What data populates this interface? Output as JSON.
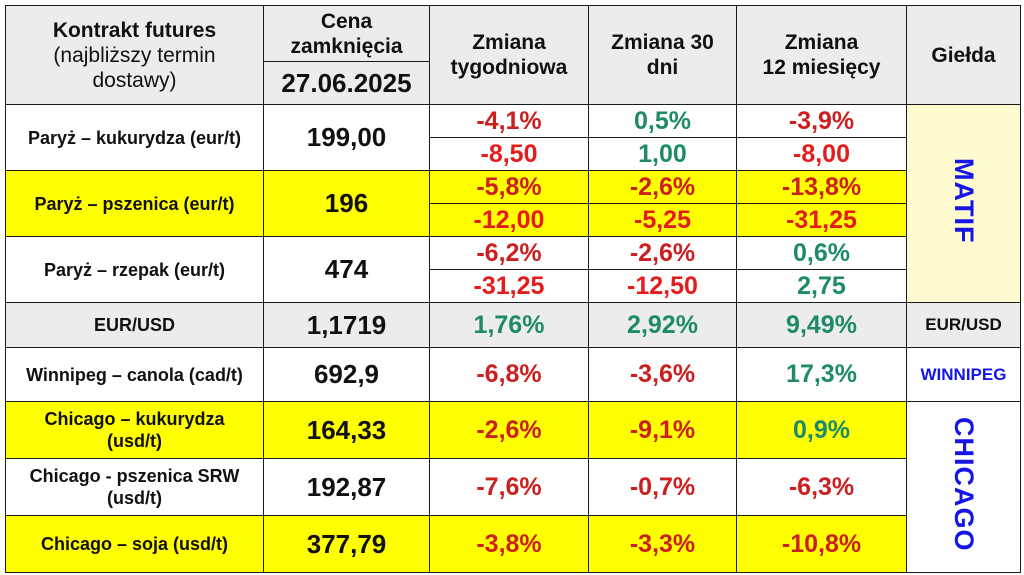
{
  "header": {
    "contract_line1": "Kontrakt futures",
    "contract_line2": "(najbliższy termin",
    "contract_line3": "dostawy)",
    "price_line1": "Cena",
    "price_line2": "zamknięcia",
    "date": "27.06.2025",
    "weekly_line1": "Zmiana",
    "weekly_line2": "tygodniowa",
    "d30_line1": "Zmiana 30",
    "d30_line2": "dni",
    "m12_line1": "Zmiana",
    "m12_line2": "12 miesięcy",
    "exchange": "Giełda"
  },
  "rows": [
    {
      "name": "Paryż – kukurydza  (eur/t)",
      "price": "199,00",
      "weekly_pct": "-4,1%",
      "weekly_abs": "-8,50",
      "d30_pct": "0,5%",
      "d30_abs": "1,00",
      "m12_pct": "-3,9%",
      "m12_abs": "-8,00"
    },
    {
      "name": "Paryż – pszenica (eur/t)",
      "price": "196",
      "weekly_pct": "-5,8%",
      "weekly_abs": "-12,00",
      "d30_pct": "-2,6%",
      "d30_abs": "-5,25",
      "m12_pct": "-13,8%",
      "m12_abs": "-31,25"
    },
    {
      "name": "Paryż – rzepak (eur/t)",
      "price": "474",
      "weekly_pct": "-6,2%",
      "weekly_abs": "-31,25",
      "d30_pct": "-2,6%",
      "d30_abs": "-12,50",
      "m12_pct": "0,6%",
      "m12_abs": "2,75"
    },
    {
      "name": "EUR/USD",
      "price": "1,1719",
      "weekly_pct": "1,76%",
      "d30_pct": "2,92%",
      "m12_pct": "9,49%",
      "exchange": "EUR/USD"
    },
    {
      "name": "Winnipeg – canola (cad/t)",
      "price": "692,9",
      "weekly_pct": "-6,8%",
      "d30_pct": "-3,6%",
      "m12_pct": "17,3%",
      "exchange": "WINNIPEG"
    },
    {
      "name_line1": "Chicago – kukurydza",
      "name_line2": "(usd/t)",
      "price": "164,33",
      "weekly_pct": "-2,6%",
      "d30_pct": "-9,1%",
      "m12_pct": "0,9%"
    },
    {
      "name_line1": "Chicago - pszenica SRW",
      "name_line2": "(usd/t)",
      "price": "192,87",
      "weekly_pct": "-7,6%",
      "d30_pct": "-0,7%",
      "m12_pct": "-6,3%"
    },
    {
      "name": "Chicago – soja (usd/t)",
      "price": "377,79",
      "weekly_pct": "-3,8%",
      "d30_pct": "-3,3%",
      "m12_pct": "-10,8%"
    }
  ],
  "exchanges": {
    "matif": "MATIF",
    "chicago": "CHICAGO"
  },
  "colors": {
    "highlight_yellow": "#ffff00",
    "header_gray": "#ececec",
    "matif_cream": "#fffbd0",
    "negative_red": "#cc1f1f",
    "positive_green": "#1e8a6a",
    "exchange_blue": "#1515e6"
  }
}
